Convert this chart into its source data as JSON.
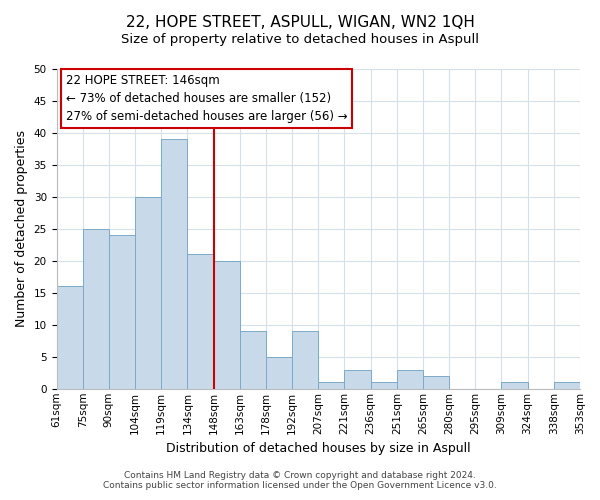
{
  "title": "22, HOPE STREET, ASPULL, WIGAN, WN2 1QH",
  "subtitle": "Size of property relative to detached houses in Aspull",
  "xlabel": "Distribution of detached houses by size in Aspull",
  "ylabel": "Number of detached properties",
  "bar_values": [
    16,
    25,
    24,
    30,
    39,
    21,
    20,
    9,
    5,
    9,
    1,
    3,
    1,
    3,
    2,
    0,
    0,
    1,
    0,
    1
  ],
  "bar_edge_labels": [
    "61sqm",
    "75sqm",
    "90sqm",
    "104sqm",
    "119sqm",
    "134sqm",
    "148sqm",
    "163sqm",
    "178sqm",
    "192sqm",
    "207sqm",
    "221sqm",
    "236sqm",
    "251sqm",
    "265sqm",
    "280sqm",
    "295sqm",
    "309sqm",
    "324sqm",
    "338sqm",
    "353sqm"
  ],
  "bar_color": "#c8daea",
  "bar_edge_color": "#7baac8",
  "vline_x": 6,
  "vline_color": "#cc0000",
  "ylim": [
    0,
    50
  ],
  "yticks": [
    0,
    5,
    10,
    15,
    20,
    25,
    30,
    35,
    40,
    45,
    50
  ],
  "annotation_title": "22 HOPE STREET: 146sqm",
  "annotation_line1": "← 73% of detached houses are smaller (152)",
  "annotation_line2": "27% of semi-detached houses are larger (56) →",
  "annotation_box_color": "#ffffff",
  "annotation_box_edge": "#cc0000",
  "footer_line1": "Contains HM Land Registry data © Crown copyright and database right 2024.",
  "footer_line2": "Contains public sector information licensed under the Open Government Licence v3.0.",
  "title_fontsize": 11,
  "subtitle_fontsize": 9.5,
  "xlabel_fontsize": 9,
  "ylabel_fontsize": 9,
  "tick_fontsize": 7.5,
  "footer_fontsize": 6.5,
  "annotation_fontsize": 8.5,
  "grid_color": "#d5e0ea"
}
